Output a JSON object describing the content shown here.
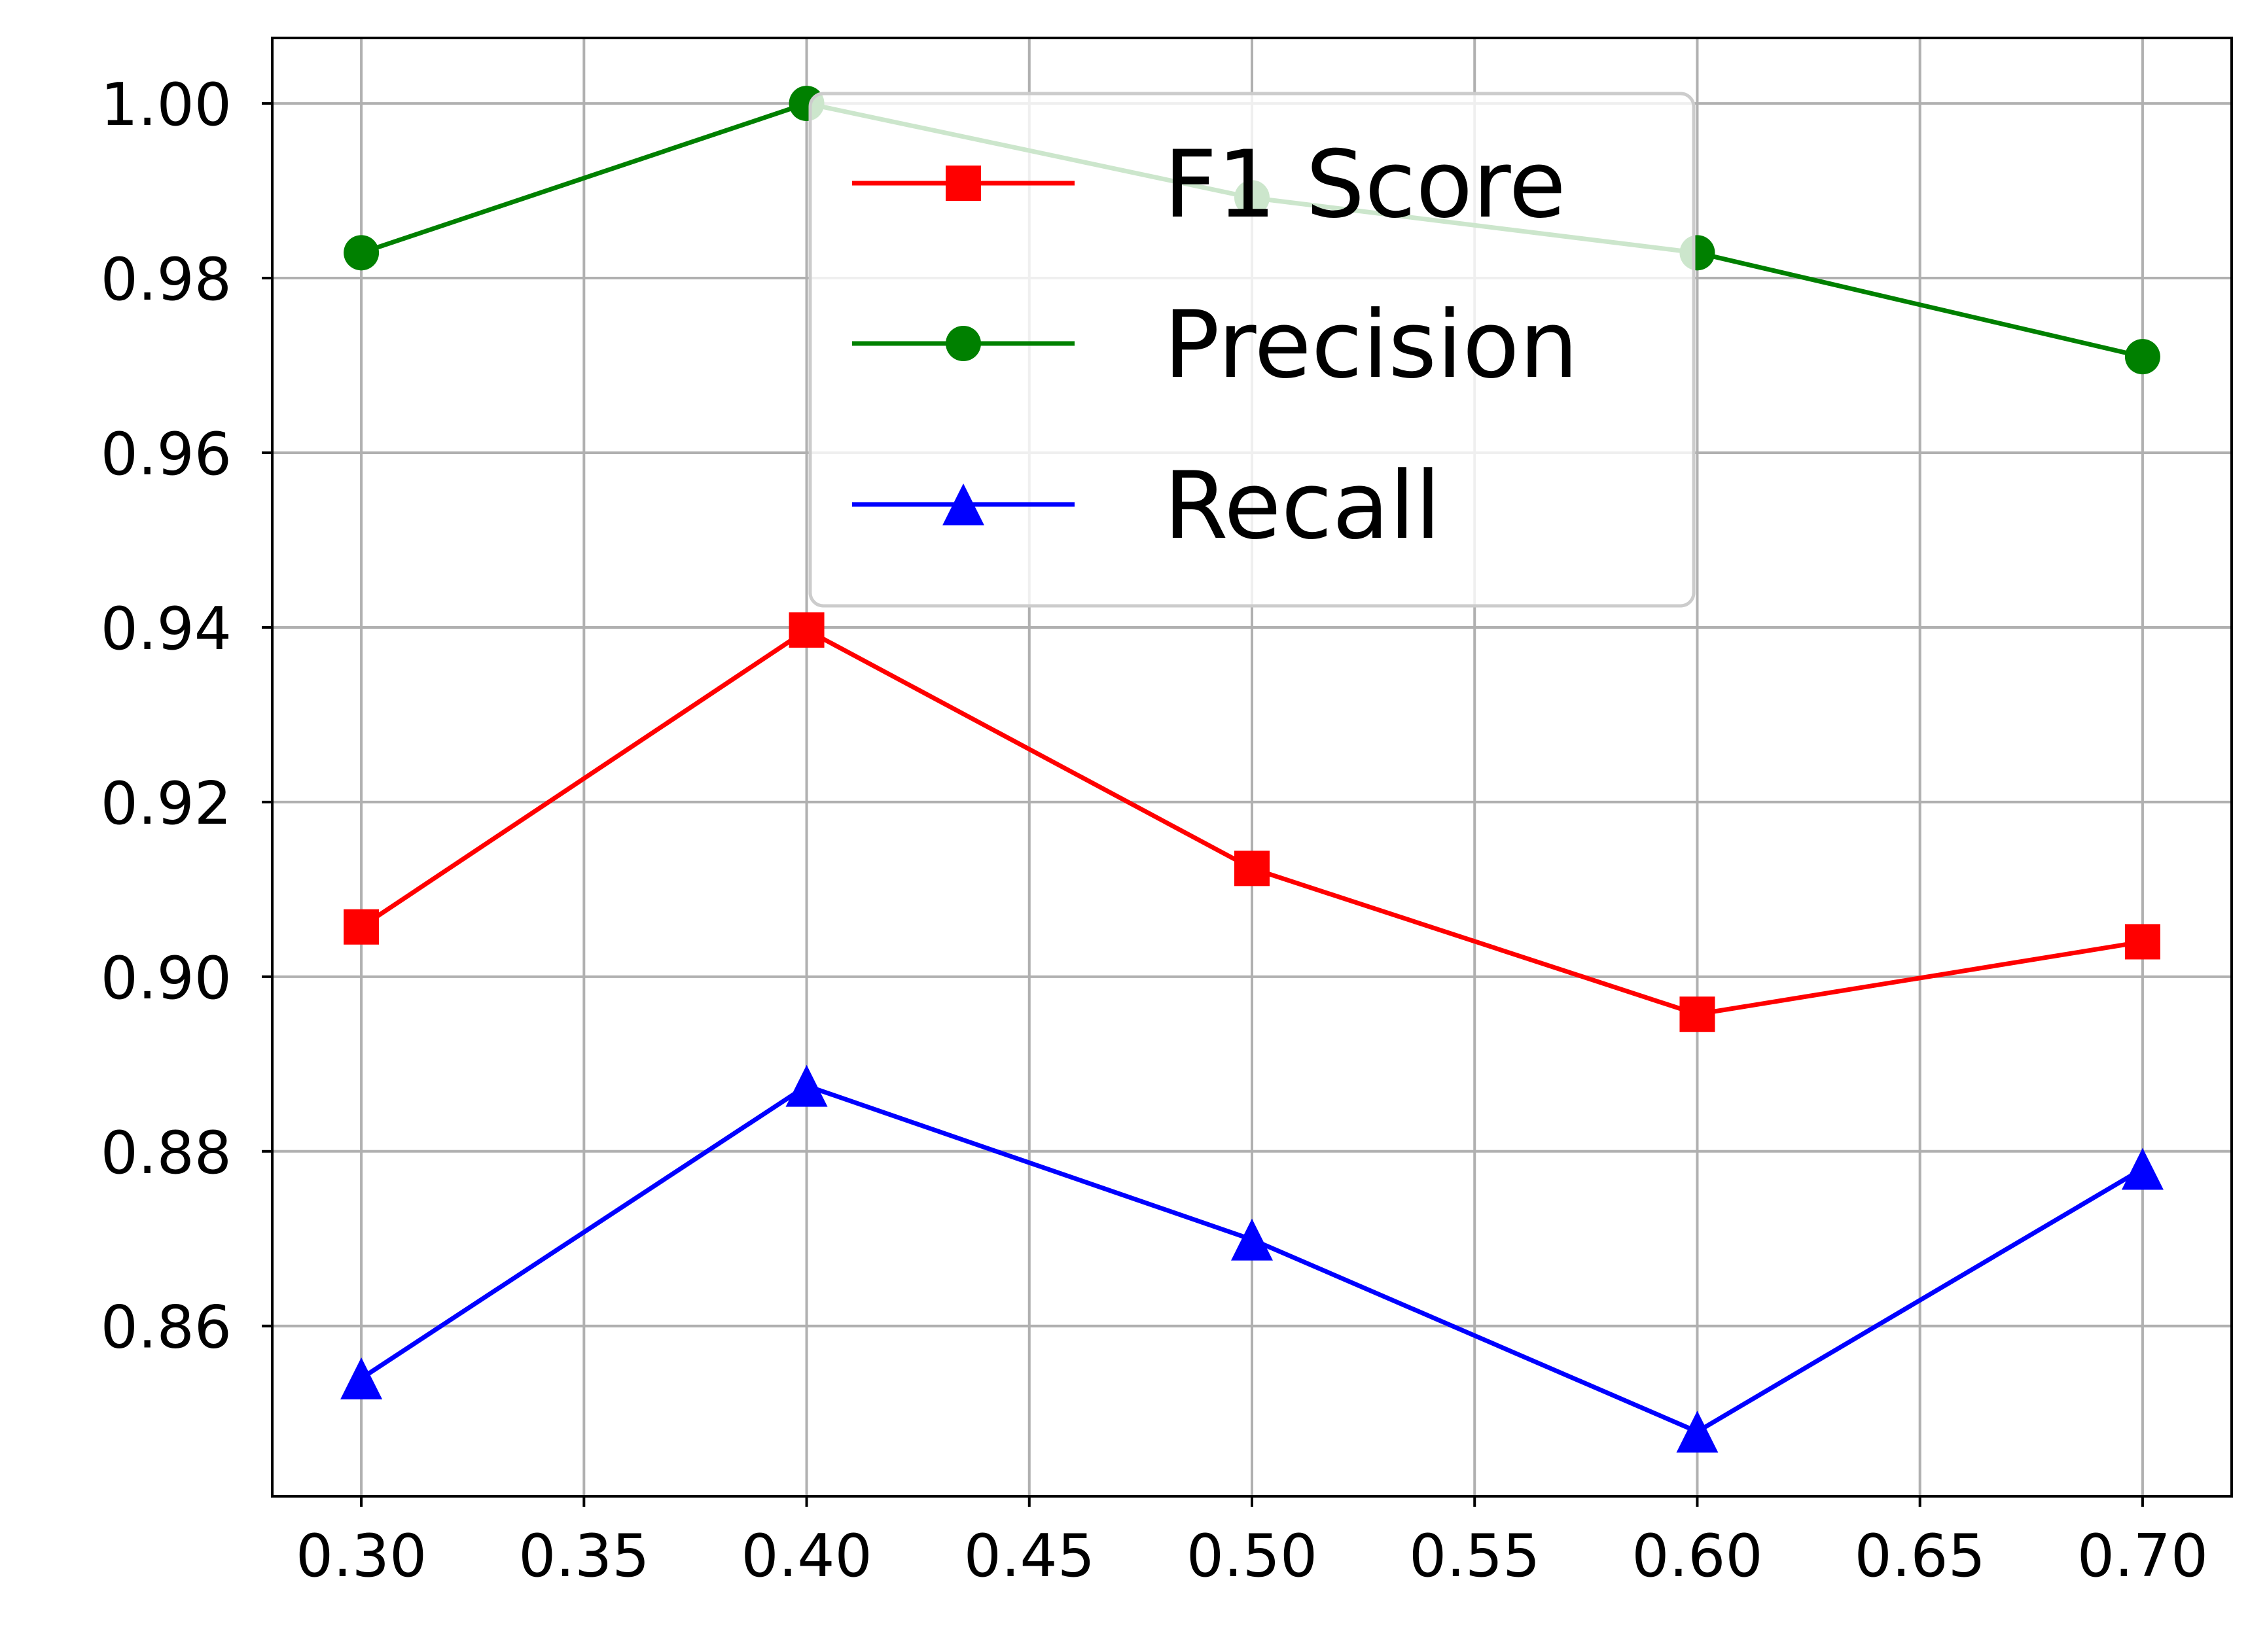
{
  "chart_data": {
    "type": "line",
    "title": "",
    "xlabel": "",
    "ylabel": "",
    "x": [
      0.3,
      0.4,
      0.5,
      0.6,
      0.7
    ],
    "x_ticks": [
      "0.30",
      "0.35",
      "0.40",
      "0.45",
      "0.50",
      "0.55",
      "0.60",
      "0.65",
      "0.70"
    ],
    "y_ticks": [
      "0.86",
      "0.88",
      "0.90",
      "0.92",
      "0.94",
      "0.96",
      "0.98",
      "1.00"
    ],
    "xlim": [
      0.28,
      0.72
    ],
    "ylim": [
      0.8405,
      1.0075
    ],
    "grid": true,
    "legend_position": "top-center",
    "series": [
      {
        "name": "F1 Score",
        "values": [
          0.9057,
          0.9397,
          0.9124,
          0.8957,
          0.904
        ],
        "color": "#ff0000",
        "marker": "square"
      },
      {
        "name": "Precision",
        "values": [
          0.9829,
          1.0,
          0.9892,
          0.9829,
          0.971
        ],
        "color": "#008000",
        "marker": "circle"
      },
      {
        "name": "Recall",
        "values": [
          0.854,
          0.8875,
          0.8699,
          0.8479,
          0.878
        ],
        "color": "#0000ff",
        "marker": "triangle"
      }
    ]
  }
}
